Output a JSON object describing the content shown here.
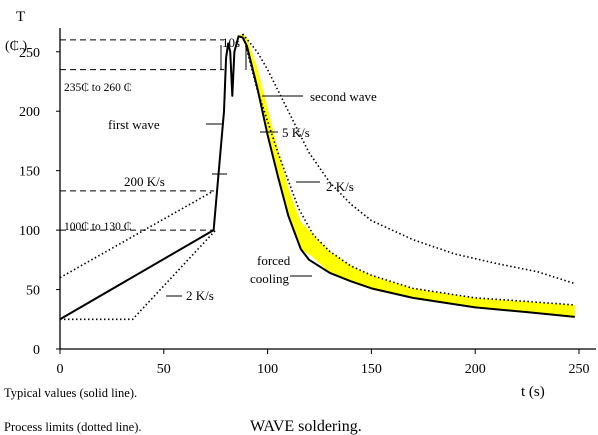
{
  "chart_data": {
    "type": "line",
    "title": "WAVE soldering.",
    "ylabel": "T",
    "yunit": "(₵ )",
    "xlabel": "t (s)",
    "xlim": [
      0,
      250
    ],
    "ylim": [
      0,
      270
    ],
    "x_ticks": [
      0,
      50,
      100,
      150,
      200,
      250
    ],
    "y_ticks": [
      0,
      50,
      100,
      150,
      200,
      250
    ],
    "grid": false,
    "notes": [
      "Typical values (solid line).",
      "Process limits (dotted line)."
    ],
    "series": [
      {
        "style": "solid",
        "x": [
          0,
          74,
          79,
          80,
          81,
          82,
          83,
          84,
          86,
          88,
          90,
          95,
          100,
          105,
          110,
          116,
          120,
          130,
          140,
          150,
          170,
          200,
          225,
          248
        ],
        "y": [
          25,
          100,
          200,
          245,
          257,
          250,
          213,
          250,
          263,
          262,
          255,
          220,
          180,
          145,
          112,
          84,
          75,
          64,
          57,
          51,
          43,
          35,
          31,
          27
        ]
      },
      {
        "style": "dotted",
        "x": [
          0,
          74
        ],
        "y": [
          60,
          133
        ]
      },
      {
        "style": "dotted",
        "x": [
          0,
          35,
          75
        ],
        "y": [
          25,
          25,
          100
        ]
      },
      {
        "style": "dotted",
        "x": [
          88,
          95,
          100,
          110,
          120,
          130,
          140,
          150,
          170,
          190,
          210,
          230,
          248
        ],
        "y": [
          265,
          250,
          235,
          200,
          165,
          140,
          122,
          108,
          92,
          80,
          72,
          65,
          55
        ]
      },
      {
        "style": "dotted",
        "x": [
          88,
          95,
          105,
          115,
          122,
          130,
          140,
          150,
          170,
          200,
          225,
          248
        ],
        "y": [
          265,
          218,
          165,
          118,
          96,
          82,
          70,
          62,
          51,
          43,
          40,
          37
        ]
      }
    ],
    "band": {
      "color": "#ffff00",
      "x": [
        84,
        86,
        88,
        90,
        95,
        100,
        105,
        110,
        116,
        122,
        130,
        140,
        150,
        170,
        200,
        225,
        248
      ],
      "lower": [
        250,
        263,
        262,
        255,
        220,
        180,
        145,
        112,
        84,
        77,
        64,
        57,
        51,
        43,
        35,
        31,
        27
      ],
      "upper": [
        250,
        264,
        265,
        262,
        237,
        203,
        168,
        135,
        107,
        96,
        82,
        70,
        62,
        51,
        43,
        40,
        37
      ]
    },
    "reference_lines": [
      {
        "y": 260,
        "x_to": 79
      },
      {
        "y": 235,
        "x_to": 79
      },
      {
        "y": 133,
        "x_to": 74
      },
      {
        "y": 100,
        "x_to": 74
      }
    ],
    "annotations": {
      "duration": "10s",
      "range_high": "235₵  to 260 ₵",
      "range_low": "100₵  to 130 ₵",
      "first_wave": "first wave",
      "second_wave": "second wave",
      "rate_200": "200 K/s",
      "rate_5": "5 K/s",
      "rate_2_right": "2 K/s",
      "rate_2_left": "2 K/s",
      "forced_cooling_1": "forced",
      "forced_cooling_2": "cooling"
    }
  }
}
